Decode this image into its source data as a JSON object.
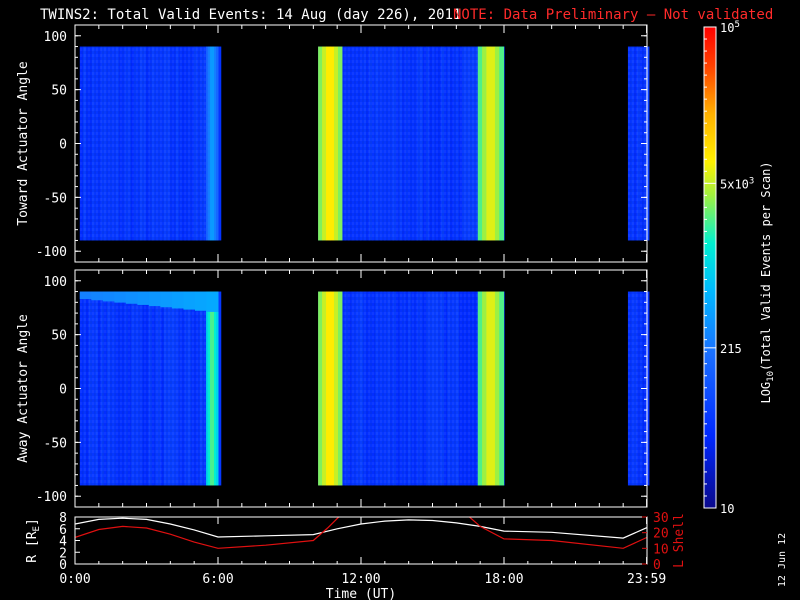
{
  "title": "TWINS2: Total Valid Events: 14 Aug (day 226), 2011",
  "note": "NOTE: Data Preliminary — Not validated",
  "footer_date": "12 Jun 12",
  "colors": {
    "background": "#000000",
    "note": "#ff2a2a",
    "r_line": "#ffffff",
    "lshell_line": "#e01010"
  },
  "chart_data": [
    {
      "type": "heatmap",
      "panel": "top",
      "ylabel": "Toward Actuator Angle",
      "ylim": [
        -110,
        110
      ],
      "yticks": [
        100,
        50,
        0,
        -50,
        -100
      ],
      "y_data_range": [
        -90,
        90
      ],
      "xlim_hours": [
        0,
        24
      ],
      "data_intervals_hours": [
        [
          0.2,
          6.0
        ],
        [
          10.2,
          17.98
        ],
        [
          23.2,
          23.983
        ]
      ],
      "bright_bands_hours": [
        {
          "start": 5.5,
          "end": 6.0,
          "log_level": 0.42
        },
        {
          "start": 10.2,
          "end": 11.2,
          "log_level": 0.75
        },
        {
          "start": 16.9,
          "end": 17.98,
          "log_level": 0.72
        }
      ],
      "background_log_level": 0.18
    },
    {
      "type": "heatmap",
      "panel": "middle",
      "ylabel": "Away Actuator Angle",
      "ylim": [
        -110,
        110
      ],
      "yticks": [
        100,
        50,
        0,
        -50,
        -100
      ],
      "y_data_range": [
        -90,
        90
      ],
      "xlim_hours": [
        0,
        24
      ],
      "data_intervals_hours": [
        [
          0.2,
          6.0
        ],
        [
          10.2,
          17.98
        ],
        [
          23.2,
          23.983
        ]
      ],
      "bright_bands_hours": [
        {
          "start": 5.5,
          "end": 6.0,
          "log_level": 0.62
        },
        {
          "start": 10.2,
          "end": 11.2,
          "log_level": 0.75
        },
        {
          "start": 16.9,
          "end": 17.98,
          "log_level": 0.72
        }
      ],
      "bright_top_edge": {
        "y_range": [
          70,
          90
        ],
        "hours": [
          0.2,
          6.0
        ],
        "log_level": 0.35
      },
      "background_log_level": 0.18
    },
    {
      "type": "line",
      "panel": "bottom",
      "xlabel": "Time (UT)",
      "x_tick_labels": [
        "0:00",
        "6:00",
        "12:00",
        "18:00",
        "23:59"
      ],
      "x_ticks_hours": [
        0,
        6,
        12,
        18,
        23.983
      ],
      "left_axis": {
        "label": "R [Rₑ]",
        "label_main": "R [R",
        "label_sub": "E",
        "label_close": "]",
        "ylim": [
          0,
          8
        ],
        "ticks": [
          0,
          2,
          4,
          6,
          8
        ]
      },
      "right_axis": {
        "label": "L Shell",
        "ylim": [
          0,
          30
        ],
        "ticks": [
          0,
          10,
          20,
          30
        ]
      },
      "series": [
        {
          "name": "R",
          "axis": "left",
          "x": [
            0,
            1,
            2,
            3,
            4,
            5,
            6,
            8,
            10,
            11,
            12,
            13,
            14,
            15,
            16,
            17,
            18,
            20,
            23,
            24
          ],
          "y": [
            6.8,
            7.6,
            7.8,
            7.6,
            6.8,
            5.8,
            4.6,
            4.8,
            5.0,
            6.0,
            6.8,
            7.3,
            7.5,
            7.4,
            7.0,
            6.4,
            5.6,
            5.4,
            4.4,
            6.2
          ]
        },
        {
          "name": "L Shell",
          "axis": "right",
          "x": [
            0,
            1,
            2,
            3,
            4,
            5,
            6,
            8,
            10,
            10.6,
            11.2,
            16.4,
            17.0,
            18,
            20,
            23,
            24
          ],
          "y": [
            17,
            22,
            24,
            23,
            19,
            14,
            10,
            12,
            15,
            23,
            32,
            32,
            24,
            16,
            15,
            10,
            17
          ]
        }
      ]
    }
  ],
  "colorbar": {
    "label": "LOG10(Total Valid Events per Scan)",
    "label_main": "LOG",
    "label_sub": "10",
    "label_rest": "(Total Valid Events per Scan)",
    "tick_labels": [
      "10",
      "215",
      "5x10^3",
      "10^5"
    ],
    "tick_log_fractions": [
      0.0,
      0.333,
      0.675,
      1.0
    ]
  }
}
